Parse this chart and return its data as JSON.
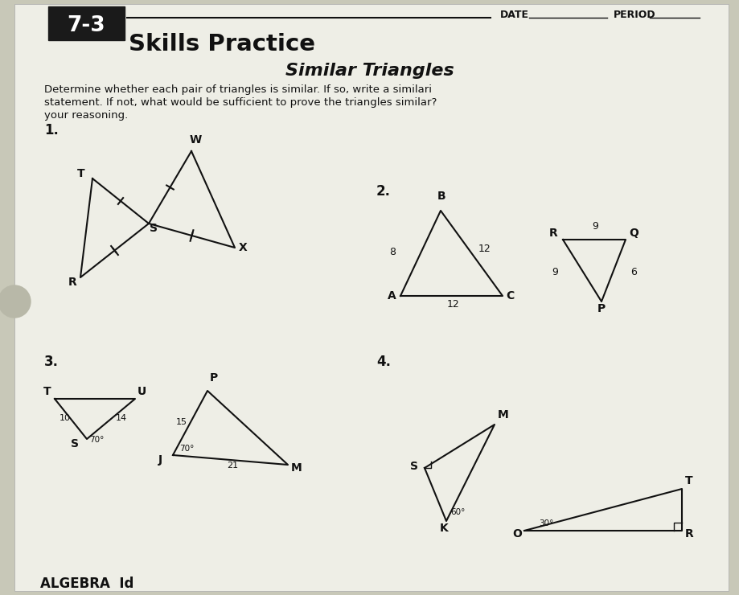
{
  "bg_color": "#c8c8b8",
  "page_color": "#eeeee6",
  "title_box_text": "7-3",
  "title_text": "Skills Practice",
  "subtitle_text": "Similar Triangles",
  "date_label": "DATE",
  "period_label": "PERIOD",
  "algebra_label": "ALGEBRA  Id",
  "line_color": "#111111",
  "text_color": "#111111"
}
